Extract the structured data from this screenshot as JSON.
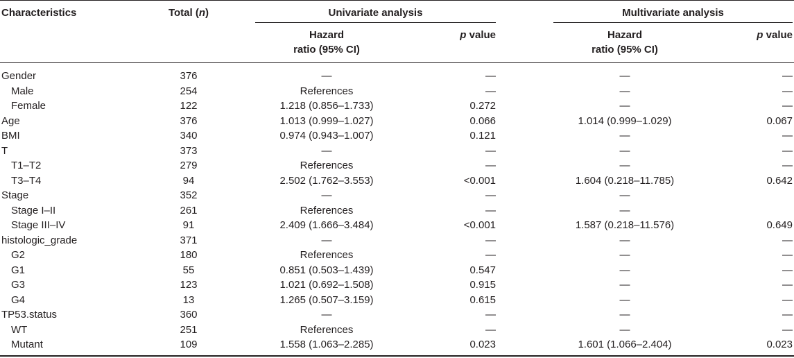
{
  "header": {
    "characteristics": "Characteristics",
    "total": "Total (n)",
    "univariate": "Univariate analysis",
    "multivariate": "Multivariate analysis",
    "hazard_line1": "Hazard",
    "hazard_line2": "ratio (95% CI)",
    "pvalue": "p value"
  },
  "rows": [
    {
      "label": "Gender",
      "total": "376",
      "uni_hr": "—",
      "uni_p": "—",
      "multi_hr": "—",
      "multi_p": "—",
      "indent": false
    },
    {
      "label": "Male",
      "total": "254",
      "uni_hr": "References",
      "uni_p": "—",
      "multi_hr": "—",
      "multi_p": "—",
      "indent": true
    },
    {
      "label": "Female",
      "total": "122",
      "uni_hr": "1.218 (0.856–1.733)",
      "uni_p": "0.272",
      "multi_hr": "—",
      "multi_p": "—",
      "indent": true
    },
    {
      "label": "Age",
      "total": "376",
      "uni_hr": "1.013 (0.999–1.027)",
      "uni_p": "0.066",
      "multi_hr": "1.014 (0.999–1.029)",
      "multi_p": "0.067",
      "indent": false
    },
    {
      "label": "BMI",
      "total": "340",
      "uni_hr": "0.974 (0.943–1.007)",
      "uni_p": "0.121",
      "multi_hr": "—",
      "multi_p": "—",
      "indent": false
    },
    {
      "label": "T",
      "total": "373",
      "uni_hr": "—",
      "uni_p": "—",
      "multi_hr": "—",
      "multi_p": "—",
      "indent": false
    },
    {
      "label": "T1–T2",
      "total": "279",
      "uni_hr": "References",
      "uni_p": "—",
      "multi_hr": "—",
      "multi_p": "—",
      "indent": true
    },
    {
      "label": "T3–T4",
      "total": "94",
      "uni_hr": "2.502 (1.762–3.553)",
      "uni_p": "<0.001",
      "multi_hr": "1.604 (0.218–11.785)",
      "multi_p": "0.642",
      "indent": true
    },
    {
      "label": "Stage",
      "total": "352",
      "uni_hr": "—",
      "uni_p": "—",
      "multi_hr": "—",
      "multi_p": "",
      "indent": false
    },
    {
      "label": "Stage I–II",
      "total": "261",
      "uni_hr": "References",
      "uni_p": "—",
      "multi_hr": "—",
      "multi_p": "",
      "indent": true
    },
    {
      "label": "Stage III–IV",
      "total": "91",
      "uni_hr": "2.409 (1.666–3.484)",
      "uni_p": "<0.001",
      "multi_hr": "1.587 (0.218–11.576)",
      "multi_p": "0.649",
      "indent": true
    },
    {
      "label": "histologic_grade",
      "total": "371",
      "uni_hr": "—",
      "uni_p": "—",
      "multi_hr": "—",
      "multi_p": "—",
      "indent": false
    },
    {
      "label": "G2",
      "total": "180",
      "uni_hr": "References",
      "uni_p": "—",
      "multi_hr": "—",
      "multi_p": "—",
      "indent": true
    },
    {
      "label": "G1",
      "total": "55",
      "uni_hr": "0.851 (0.503–1.439)",
      "uni_p": "0.547",
      "multi_hr": "—",
      "multi_p": "—",
      "indent": true
    },
    {
      "label": "G3",
      "total": "123",
      "uni_hr": "1.021 (0.692–1.508)",
      "uni_p": "0.915",
      "multi_hr": "—",
      "multi_p": "—",
      "indent": true
    },
    {
      "label": "G4",
      "total": "13",
      "uni_hr": "1.265 (0.507–3.159)",
      "uni_p": "0.615",
      "multi_hr": "—",
      "multi_p": "—",
      "indent": true
    },
    {
      "label": "TP53.status",
      "total": "360",
      "uni_hr": "—",
      "uni_p": "—",
      "multi_hr": "—",
      "multi_p": "—",
      "indent": false
    },
    {
      "label": "WT",
      "total": "251",
      "uni_hr": "References",
      "uni_p": "—",
      "multi_hr": "—",
      "multi_p": "—",
      "indent": true
    },
    {
      "label": "Mutant",
      "total": "109",
      "uni_hr": "1.558 (1.063–2.285)",
      "uni_p": "0.023",
      "multi_hr": "1.601 (1.066–2.404)",
      "multi_p": "0.023",
      "indent": true
    }
  ]
}
